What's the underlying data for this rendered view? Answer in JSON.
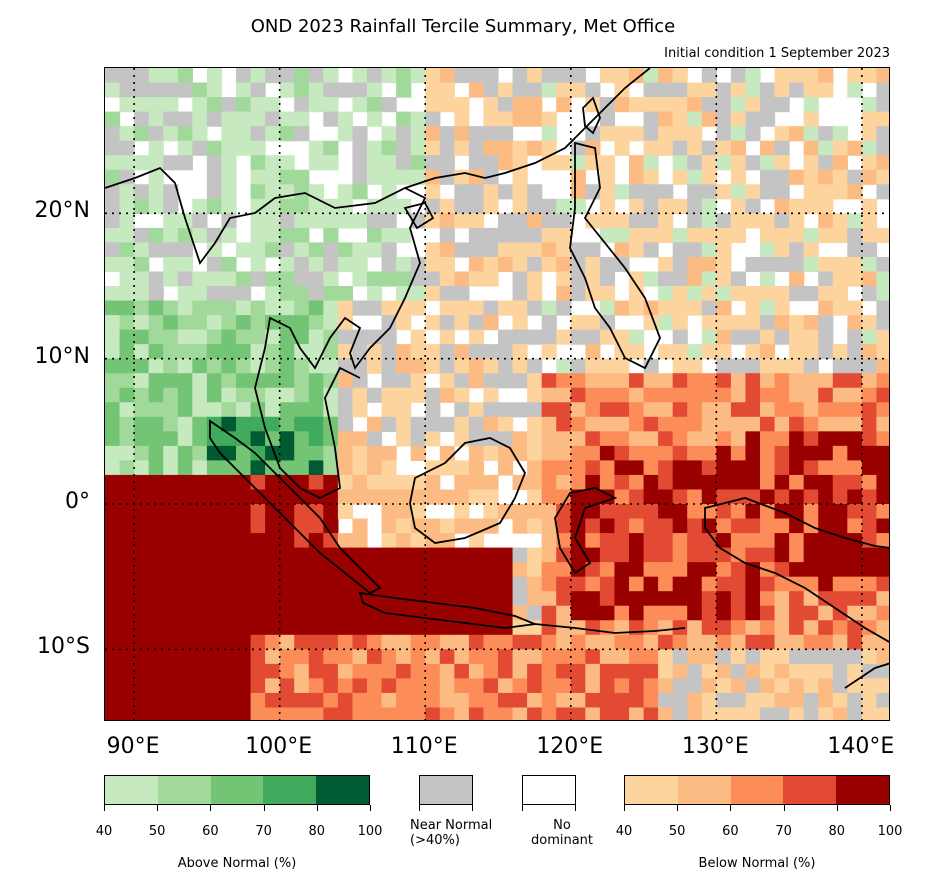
{
  "title": "OND 2023 Rainfall Tercile Summary, Met Office",
  "subtitle": "Initial condition 1 September 2023",
  "map": {
    "lon_range": [
      88,
      142
    ],
    "lat_range": [
      -15,
      30
    ],
    "y_labels": [
      {
        "lat": 20,
        "label": "20°N"
      },
      {
        "lat": 10,
        "label": "10°N"
      },
      {
        "lat": 0,
        "label": "0°"
      },
      {
        "lat": -10,
        "label": "10°S"
      }
    ],
    "x_labels": [
      {
        "lon": 90,
        "label": "90°E"
      },
      {
        "lon": 100,
        "label": "100°E"
      },
      {
        "lon": 110,
        "label": "110°E"
      },
      {
        "lon": 120,
        "label": "120°E"
      },
      {
        "lon": 130,
        "label": "130°E"
      },
      {
        "lon": 140,
        "label": "140°E"
      }
    ],
    "gridlines": {
      "lons": [
        90,
        100,
        110,
        120,
        130,
        140
      ],
      "lats": [
        20,
        10,
        0,
        -10
      ],
      "style": "dotted"
    }
  },
  "legend": {
    "above_normal": {
      "label": "Above Normal (%)",
      "colors": [
        "#c7e9c0",
        "#a1d99b",
        "#74c476",
        "#41ab5d",
        "#005a32"
      ],
      "ticks": [
        "40",
        "50",
        "60",
        "70",
        "80",
        "100"
      ]
    },
    "near_normal": {
      "line1": "Near Normal",
      "line2": "(>40%)",
      "color": "#c4c4c4"
    },
    "no_dominant": {
      "line1": "No",
      "line2": "dominant",
      "color": "#ffffff"
    },
    "below_normal": {
      "label": "Below Normal (%)",
      "colors": [
        "#fdd49e",
        "#fdbb84",
        "#fc8d59",
        "#e34a33",
        "#990000"
      ],
      "ticks": [
        "40",
        "50",
        "60",
        "70",
        "80",
        "100"
      ]
    }
  },
  "palette": {
    "white": "#ffffff",
    "gray": "#c4c4c4",
    "g1": "#c7e9c0",
    "g2": "#a1d99b",
    "g3": "#74c476",
    "g4": "#41ab5d",
    "g5": "#005a32",
    "o1": "#fdd49e",
    "o2": "#fdbb84",
    "o3": "#fc8d59",
    "o4": "#e34a33",
    "o5": "#990000"
  }
}
